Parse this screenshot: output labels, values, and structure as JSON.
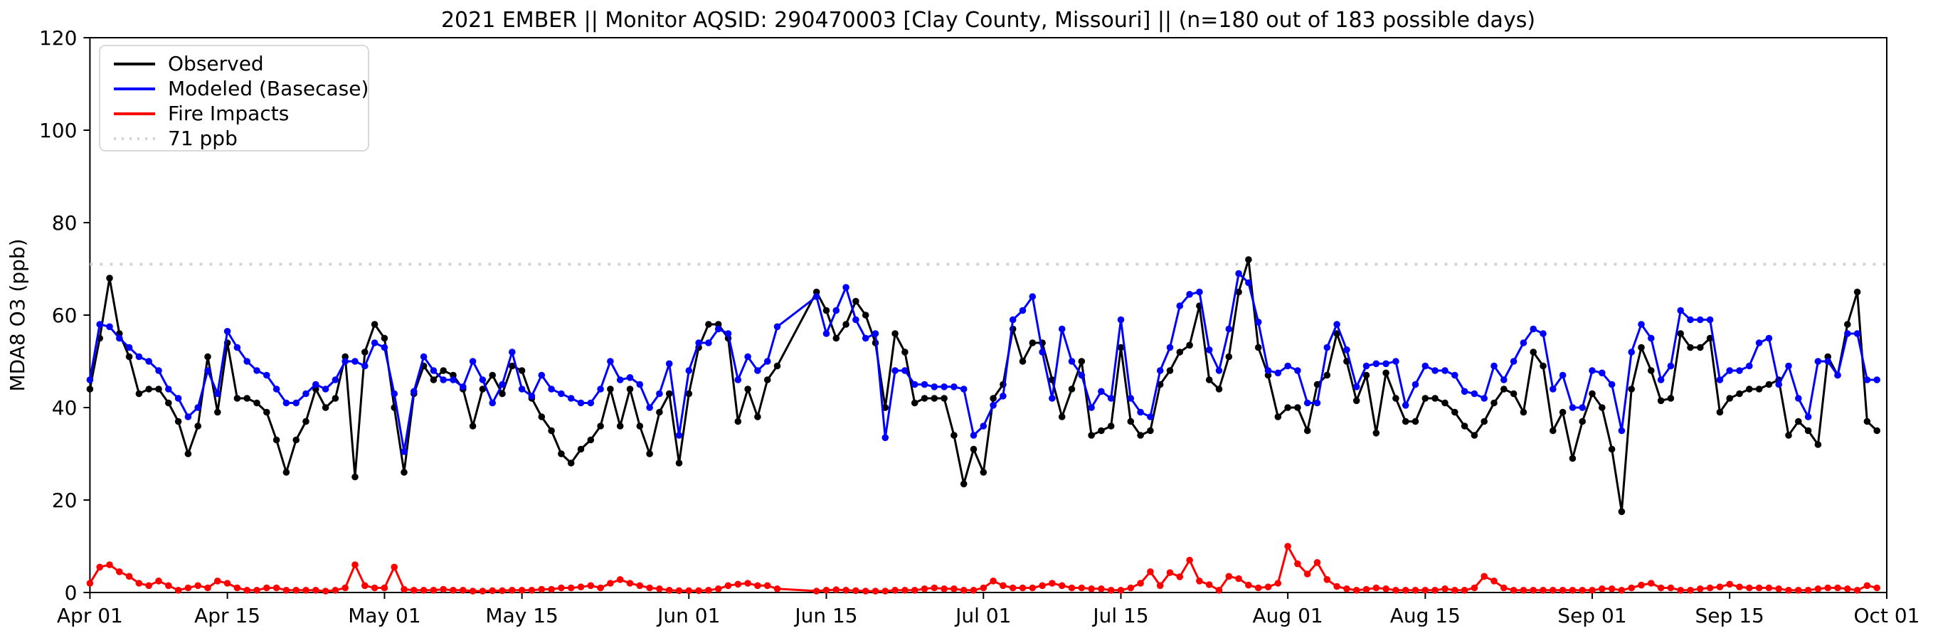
{
  "title": "2021 EMBER || Monitor AQSID: 290470003 [Clay County, Missouri] || (n=180 out of 183 possible days)",
  "axes": {
    "ylabel": "MDA8 O3 (ppb)",
    "ylim": [
      0,
      120
    ],
    "yticks": [
      0,
      20,
      40,
      60,
      80,
      100,
      120
    ],
    "xticks": [
      {
        "day": 0,
        "label": "Apr 01"
      },
      {
        "day": 14,
        "label": "Apr 15"
      },
      {
        "day": 30,
        "label": "May 01"
      },
      {
        "day": 44,
        "label": "May 15"
      },
      {
        "day": 61,
        "label": "Jun 01"
      },
      {
        "day": 75,
        "label": "Jun 15"
      },
      {
        "day": 91,
        "label": "Jul 01"
      },
      {
        "day": 105,
        "label": "Jul 15"
      },
      {
        "day": 122,
        "label": "Aug 01"
      },
      {
        "day": 136,
        "label": "Aug 15"
      },
      {
        "day": 153,
        "label": "Sep 01"
      },
      {
        "day": 167,
        "label": "Sep 15"
      },
      {
        "day": 183,
        "label": "Oct 01"
      }
    ],
    "total_days": 183,
    "grid": "off",
    "frame": "on"
  },
  "threshold": {
    "value": 71,
    "label": "71 ppb",
    "color": "#d3d3d3",
    "style": "dotted"
  },
  "legend": {
    "position": "upper-left",
    "items": [
      {
        "label": "Observed",
        "color": "#000000",
        "style": "solid"
      },
      {
        "label": "Modeled (Basecase)",
        "color": "#0000ff",
        "style": "solid"
      },
      {
        "label": "Fire Impacts",
        "color": "#ff0000",
        "style": "solid"
      },
      {
        "label": "71 ppb",
        "color": "#d3d3d3",
        "style": "dotted"
      }
    ]
  },
  "chart_data": {
    "type": "line",
    "title": "2021 EMBER || Monitor AQSID: 290470003 [Clay County, Missouri] || (n=180 out of 183 possible days)",
    "xlabel": "",
    "ylabel": "MDA8 O3 (ppb)",
    "x_unit": "day index from Apr 01, 2021 (missing days Jun 11-13 are null)",
    "x_start": "Apr 01",
    "x_end": "Sep 30",
    "n_days": 180,
    "possible_days": 183,
    "markers": true,
    "series": [
      {
        "name": "Observed",
        "color": "#000000",
        "values": [
          44,
          55,
          68,
          56,
          51,
          43,
          44,
          44,
          41,
          37,
          30,
          36,
          51,
          39,
          54,
          42,
          42,
          41,
          39,
          33,
          26,
          33,
          37,
          44,
          40,
          42,
          51,
          25,
          52,
          58,
          55,
          40,
          26,
          43,
          49,
          46,
          48,
          47,
          44,
          36,
          44,
          47,
          43,
          49,
          48,
          42,
          38,
          35,
          30,
          28,
          31,
          33,
          36,
          44,
          36,
          44,
          36,
          30,
          39,
          43,
          28,
          43,
          53,
          58,
          58,
          55,
          37,
          44,
          38,
          46,
          49,
          null,
          null,
          null,
          65,
          61,
          55,
          58,
          63,
          60,
          54,
          40,
          56,
          52,
          41,
          42,
          42,
          42,
          34,
          23.5,
          31,
          26,
          42,
          45,
          57,
          50,
          54,
          54,
          46,
          38,
          44,
          50,
          34,
          35,
          36,
          53,
          37,
          34,
          35,
          45,
          48,
          52,
          53.5,
          62,
          46,
          44,
          51,
          65,
          72,
          53,
          47,
          38,
          40,
          40,
          35,
          45,
          47,
          56,
          50,
          41.5,
          47,
          34.5,
          47.5,
          42,
          37,
          37,
          42,
          42,
          41,
          39,
          36,
          34,
          37,
          41,
          44,
          43,
          39,
          52,
          49,
          35,
          39,
          29,
          37,
          43,
          40,
          31,
          17.5,
          44,
          53,
          48,
          41.5,
          42,
          56,
          53,
          53,
          55,
          39,
          42,
          43,
          44,
          44,
          45,
          46,
          34,
          37,
          35,
          32,
          51,
          47,
          58,
          65,
          37,
          35
        ]
      },
      {
        "name": "Modeled (Basecase)",
        "color": "#0000ff",
        "values": [
          46,
          58,
          57.5,
          55,
          53,
          51,
          50,
          48,
          44,
          42,
          38,
          40,
          48,
          43,
          56.5,
          53,
          50,
          48,
          47,
          44,
          41,
          41,
          43,
          45,
          44,
          46,
          50,
          50,
          49,
          54,
          53,
          43,
          30.5,
          43.5,
          51,
          48,
          46,
          46,
          44.5,
          50,
          46,
          41,
          45,
          52,
          44,
          42.5,
          47,
          44,
          43,
          42,
          41,
          41,
          44,
          50,
          46,
          46.5,
          45,
          40,
          43,
          49.5,
          34,
          48,
          54,
          54,
          57,
          56,
          46,
          51,
          48,
          50,
          57.5,
          null,
          null,
          null,
          64,
          56,
          61,
          66,
          59,
          55,
          56,
          33.5,
          48,
          48,
          45,
          45,
          44.5,
          44.5,
          44.5,
          44,
          34,
          36,
          40.5,
          42.5,
          59,
          61,
          64,
          52,
          42,
          57,
          50,
          47,
          40,
          43.5,
          42,
          59,
          42,
          39,
          38,
          48,
          53,
          62,
          64.5,
          65,
          52.5,
          48,
          57,
          69,
          67,
          58.5,
          48,
          47.5,
          49,
          48,
          41,
          41,
          53,
          58,
          52.5,
          44.5,
          49,
          49.5,
          49.5,
          50,
          40.5,
          45,
          49,
          48,
          48,
          47,
          43.5,
          43,
          42,
          49,
          46,
          50,
          54,
          57,
          56,
          44,
          47,
          40,
          40,
          48,
          47.5,
          45,
          35,
          52,
          58,
          55,
          46,
          49,
          61,
          59,
          59,
          59,
          46,
          48,
          48,
          49,
          54,
          55,
          45,
          49,
          42,
          38,
          50,
          50,
          47,
          56,
          56,
          46,
          46
        ]
      },
      {
        "name": "Fire Impacts",
        "color": "#ff0000",
        "values": [
          2,
          5.5,
          6,
          4.5,
          3.5,
          2,
          1.5,
          2.5,
          1.5,
          0.5,
          1,
          1.5,
          1,
          2.5,
          2,
          1,
          0.5,
          0.5,
          1,
          1,
          0.5,
          0.5,
          0.5,
          0.5,
          0.3,
          0.5,
          1,
          6,
          1.5,
          1,
          1,
          5.5,
          0.7,
          0.5,
          0.5,
          0.5,
          0.7,
          0.5,
          0.5,
          0.3,
          0.3,
          0.4,
          0.4,
          0.5,
          0.5,
          0.5,
          0.7,
          0.7,
          1,
          1,
          1.2,
          1.5,
          1,
          2,
          2.8,
          2,
          1.5,
          1,
          0.8,
          0.5,
          0.4,
          0.4,
          0.4,
          0.5,
          0.8,
          1.5,
          1.8,
          2,
          1.5,
          1.5,
          0.8,
          null,
          null,
          null,
          0.3,
          0.5,
          0.6,
          0.5,
          0.4,
          0.3,
          0.3,
          0.3,
          0.5,
          0.5,
          0.5,
          0.8,
          1,
          0.8,
          0.8,
          0.5,
          0.5,
          1,
          2.5,
          1.5,
          1,
          1,
          1,
          1.5,
          2,
          1.5,
          1,
          1,
          0.8,
          0.8,
          0.5,
          0.5,
          1,
          2,
          4.5,
          1.5,
          4.3,
          3.4,
          7,
          2.5,
          1.7,
          0.5,
          3.5,
          3,
          1.6,
          1,
          1.2,
          2,
          10,
          6.2,
          4,
          6.5,
          2.8,
          1.3,
          0.8,
          0.5,
          0.7,
          1,
          0.8,
          0.5,
          0.5,
          0.5,
          0.5,
          0.5,
          0.8,
          0.5,
          0.5,
          1,
          3.5,
          2.5,
          1,
          0.5,
          0.5,
          0.5,
          0.5,
          0.5,
          0.5,
          0.5,
          0.5,
          0.5,
          0.8,
          0.8,
          0.5,
          1,
          1.6,
          2,
          1,
          1,
          0.5,
          0.5,
          0.8,
          1,
          1.2,
          1.8,
          1.2,
          1,
          1,
          1,
          0.8,
          0.5,
          0.5,
          0.5,
          0.8,
          1,
          1,
          0.8,
          0.5,
          1.5,
          1
        ]
      }
    ],
    "legend_entries": [
      "Observed",
      "Modeled (Basecase)",
      "Fire Impacts",
      "71 ppb"
    ],
    "ylim": [
      0,
      120
    ]
  }
}
